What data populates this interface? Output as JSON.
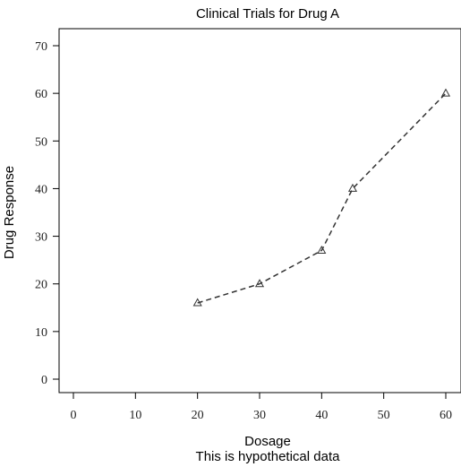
{
  "chart_data": {
    "type": "line",
    "title": "Clinical Trials for Drug A",
    "xlabel": "Dosage",
    "ylabel": "Drug Response",
    "subtitle": "This is hypothetical data",
    "x": [
      20,
      30,
      40,
      45,
      60
    ],
    "series": [
      {
        "values": [
          16,
          20,
          27,
          40,
          60
        ],
        "marker": "triangle-open",
        "linestyle": "dashed"
      }
    ],
    "xlim": [
      0,
      60
    ],
    "ylim": [
      0,
      70
    ],
    "xticks": [
      0,
      10,
      20,
      30,
      40,
      50,
      60
    ],
    "yticks": [
      0,
      10,
      20,
      30,
      40,
      50,
      60,
      70
    ],
    "grid": false,
    "colors": {
      "line": "#333333",
      "frame": "#000000"
    }
  }
}
